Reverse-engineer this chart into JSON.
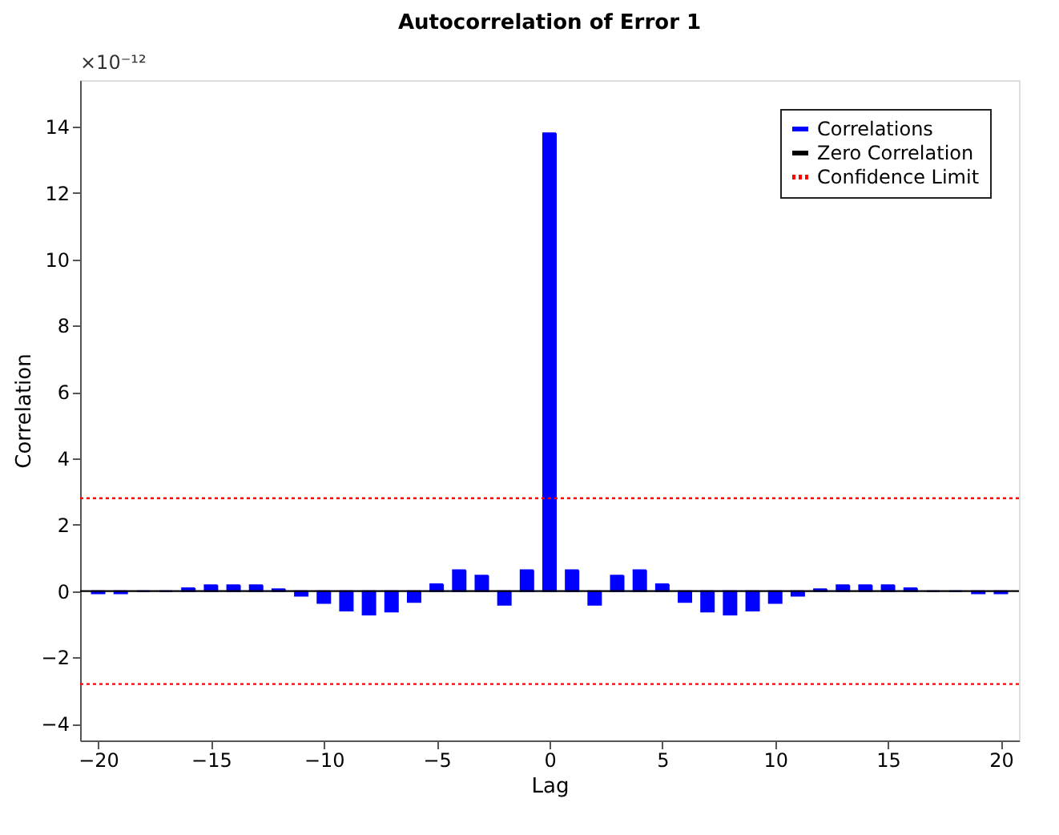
{
  "chart_data": {
    "type": "bar",
    "title": "Autocorrelation of Error 1",
    "xlabel": "Lag",
    "ylabel": "Correlation",
    "annotations": [
      "×10⁻¹²"
    ],
    "x": [
      -20,
      -19,
      -18,
      -17,
      -16,
      -15,
      -14,
      -13,
      -12,
      -11,
      -10,
      -9,
      -8,
      -7,
      -6,
      -5,
      -4,
      -3,
      -2,
      -1,
      0,
      1,
      2,
      3,
      4,
      5,
      6,
      7,
      8,
      9,
      10,
      11,
      12,
      13,
      14,
      15,
      16,
      17,
      18,
      19,
      20
    ],
    "series": [
      {
        "name": "Correlations",
        "color": "#0000ff",
        "values": [
          -0.07,
          -0.07,
          0,
          0,
          0.09,
          0.18,
          0.18,
          0.18,
          0.06,
          -0.14,
          -0.36,
          -0.59,
          -0.71,
          -0.62,
          -0.33,
          0.21,
          0.63,
          0.47,
          -0.41,
          0.63,
          13.8,
          0.63,
          -0.41,
          0.47,
          0.63,
          0.21,
          -0.33,
          -0.62,
          -0.71,
          -0.59,
          -0.36,
          -0.14,
          0.06,
          0.18,
          0.18,
          0.18,
          0.09,
          0,
          0,
          -0.07,
          -0.07
        ]
      }
    ],
    "ref_lines": [
      {
        "axis": "y",
        "value": 0,
        "label": "Zero Correlation",
        "color": "#000000",
        "line_style": "solid"
      },
      {
        "axis": "y",
        "value": 2.8,
        "label": "Confidence Limit",
        "color": "#ff0000",
        "line_style": "dotted"
      },
      {
        "axis": "y",
        "value": -2.8,
        "color": "#ff0000",
        "line_style": "dotted"
      }
    ],
    "xlim": [
      -20.8,
      20.8
    ],
    "xticks": [
      -20,
      -15,
      -10,
      -5,
      0,
      5,
      10,
      15,
      20
    ],
    "ylim": [
      -4.5,
      15.4
    ],
    "yticks": [
      -4,
      -2,
      0,
      2,
      4,
      6,
      8,
      10,
      12,
      14
    ],
    "grid": false,
    "legend": "top right"
  }
}
